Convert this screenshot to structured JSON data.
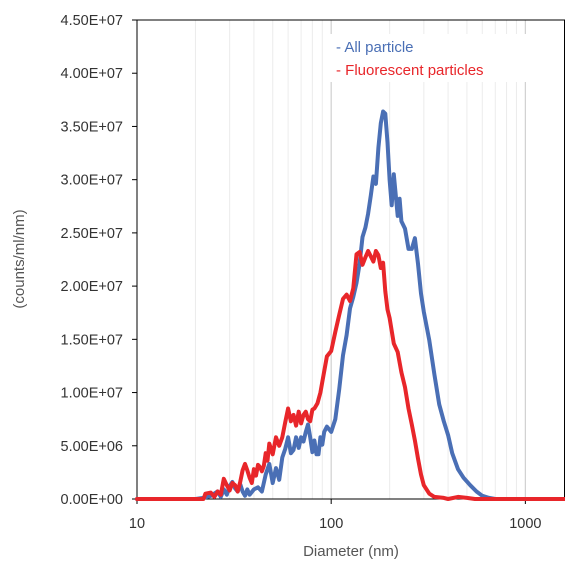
{
  "chart_data": {
    "type": "line",
    "xlabel": "Diameter (nm)",
    "ylabel": "(counts/ml/nm)",
    "x_scale": "log",
    "xlim": [
      10,
      1600
    ],
    "ylim": [
      0,
      45000000
    ],
    "x_ticks": [
      "10",
      "100",
      "1000"
    ],
    "y_ticks": [
      "0.00E+00",
      "5.00E+06",
      "1.00E+07",
      "1.50E+07",
      "2.00E+07",
      "2.50E+07",
      "3.00E+07",
      "3.50E+07",
      "4.00E+07",
      "4.50E+07"
    ],
    "y_tick_values": [
      0,
      5000000,
      10000000,
      15000000,
      20000000,
      25000000,
      30000000,
      35000000,
      40000000,
      45000000
    ],
    "grid": "vertical gridlines only",
    "legend_position": "top-right",
    "series": [
      {
        "name": "- All particle",
        "color": "#4a6fb5",
        "points": [
          [
            10,
            0
          ],
          [
            20,
            0
          ],
          [
            22,
            100000
          ],
          [
            24,
            300000
          ],
          [
            26,
            700000
          ],
          [
            27,
            200000
          ],
          [
            28,
            900000
          ],
          [
            29,
            400000
          ],
          [
            30,
            1200000
          ],
          [
            31,
            1600000
          ],
          [
            32,
            1000000
          ],
          [
            33,
            700000
          ],
          [
            34,
            1400000
          ],
          [
            35,
            700000
          ],
          [
            36,
            300000
          ],
          [
            37,
            900000
          ],
          [
            38,
            400000
          ],
          [
            40,
            900000
          ],
          [
            42,
            1100000
          ],
          [
            44,
            700000
          ],
          [
            46,
            2300000
          ],
          [
            48,
            3300000
          ],
          [
            50,
            1500000
          ],
          [
            52,
            2900000
          ],
          [
            54,
            1800000
          ],
          [
            56,
            3900000
          ],
          [
            58,
            4700000
          ],
          [
            60,
            5800000
          ],
          [
            62,
            4300000
          ],
          [
            64,
            4600000
          ],
          [
            66,
            5800000
          ],
          [
            68,
            4800000
          ],
          [
            70,
            5800000
          ],
          [
            72,
            5400000
          ],
          [
            74,
            6300000
          ],
          [
            76,
            7000000
          ],
          [
            78,
            5800000
          ],
          [
            80,
            4400000
          ],
          [
            82,
            5500000
          ],
          [
            84,
            4200000
          ],
          [
            86,
            4200000
          ],
          [
            88,
            5800000
          ],
          [
            90,
            5100000
          ],
          [
            92,
            6300000
          ],
          [
            95,
            6800000
          ],
          [
            100,
            6300000
          ],
          [
            105,
            7500000
          ],
          [
            110,
            10300000
          ],
          [
            115,
            13500000
          ],
          [
            120,
            15400000
          ],
          [
            125,
            17900000
          ],
          [
            130,
            19000000
          ],
          [
            135,
            20300000
          ],
          [
            140,
            22100000
          ],
          [
            145,
            24600000
          ],
          [
            150,
            25500000
          ],
          [
            155,
            26800000
          ],
          [
            160,
            28500000
          ],
          [
            165,
            30300000
          ],
          [
            170,
            29600000
          ],
          [
            175,
            33000000
          ],
          [
            180,
            35300000
          ],
          [
            185,
            36400000
          ],
          [
            190,
            36200000
          ],
          [
            195,
            33500000
          ],
          [
            200,
            30000000
          ],
          [
            205,
            27600000
          ],
          [
            210,
            30500000
          ],
          [
            215,
            28600000
          ],
          [
            220,
            26600000
          ],
          [
            225,
            28200000
          ],
          [
            230,
            26100000
          ],
          [
            240,
            25400000
          ],
          [
            250,
            23500000
          ],
          [
            260,
            23500000
          ],
          [
            270,
            24500000
          ],
          [
            280,
            22100000
          ],
          [
            290,
            19300000
          ],
          [
            300,
            17600000
          ],
          [
            320,
            14900000
          ],
          [
            340,
            11700000
          ],
          [
            360,
            8900000
          ],
          [
            380,
            7300000
          ],
          [
            400,
            6000000
          ],
          [
            420,
            4300000
          ],
          [
            450,
            2800000
          ],
          [
            480,
            2000000
          ],
          [
            520,
            1300000
          ],
          [
            560,
            700000
          ],
          [
            600,
            300000
          ],
          [
            650,
            100000
          ],
          [
            700,
            0
          ],
          [
            1600,
            0
          ]
        ]
      },
      {
        "name": "- Fluorescent particles",
        "color": "#e8262a",
        "points": [
          [
            10,
            0
          ],
          [
            22,
            0
          ],
          [
            22.5,
            500000
          ],
          [
            24,
            600000
          ],
          [
            25,
            200000
          ],
          [
            26,
            700000
          ],
          [
            27,
            400000
          ],
          [
            28,
            1900000
          ],
          [
            29,
            1300000
          ],
          [
            30,
            800000
          ],
          [
            31,
            1500000
          ],
          [
            32,
            1300000
          ],
          [
            33,
            700000
          ],
          [
            34,
            1600000
          ],
          [
            35,
            2700000
          ],
          [
            36,
            3300000
          ],
          [
            37,
            2700000
          ],
          [
            38,
            2000000
          ],
          [
            39,
            1500000
          ],
          [
            40,
            2800000
          ],
          [
            41,
            2200000
          ],
          [
            42,
            3200000
          ],
          [
            43,
            3000000
          ],
          [
            44,
            2600000
          ],
          [
            45,
            3100000
          ],
          [
            46,
            4300000
          ],
          [
            47,
            3600000
          ],
          [
            48,
            5200000
          ],
          [
            50,
            4200000
          ],
          [
            52,
            5800000
          ],
          [
            54,
            5000000
          ],
          [
            56,
            5800000
          ],
          [
            58,
            7200000
          ],
          [
            60,
            8500000
          ],
          [
            62,
            7300000
          ],
          [
            64,
            7900000
          ],
          [
            66,
            6900000
          ],
          [
            68,
            8200000
          ],
          [
            70,
            7100000
          ],
          [
            72,
            7900000
          ],
          [
            74,
            8200000
          ],
          [
            76,
            7500000
          ],
          [
            78,
            7300000
          ],
          [
            80,
            8400000
          ],
          [
            82,
            8500000
          ],
          [
            85,
            9000000
          ],
          [
            88,
            10000000
          ],
          [
            90,
            11000000
          ],
          [
            95,
            13400000
          ],
          [
            100,
            13900000
          ],
          [
            105,
            15700000
          ],
          [
            110,
            17300000
          ],
          [
            115,
            18800000
          ],
          [
            120,
            19200000
          ],
          [
            125,
            18600000
          ],
          [
            130,
            19800000
          ],
          [
            135,
            23000000
          ],
          [
            140,
            23200000
          ],
          [
            145,
            22000000
          ],
          [
            150,
            22700000
          ],
          [
            155,
            23300000
          ],
          [
            160,
            22800000
          ],
          [
            165,
            22300000
          ],
          [
            170,
            23300000
          ],
          [
            175,
            22900000
          ],
          [
            180,
            21700000
          ],
          [
            185,
            22200000
          ],
          [
            190,
            19500000
          ],
          [
            195,
            17800000
          ],
          [
            200,
            17000000
          ],
          [
            210,
            14600000
          ],
          [
            220,
            13800000
          ],
          [
            230,
            11900000
          ],
          [
            240,
            10500000
          ],
          [
            250,
            8500000
          ],
          [
            260,
            7000000
          ],
          [
            270,
            5500000
          ],
          [
            280,
            3800000
          ],
          [
            290,
            2300000
          ],
          [
            300,
            1300000
          ],
          [
            320,
            500000
          ],
          [
            340,
            200000
          ],
          [
            380,
            100000
          ],
          [
            400,
            0
          ],
          [
            450,
            200000
          ],
          [
            500,
            100000
          ],
          [
            550,
            0
          ],
          [
            1600,
            0
          ]
        ]
      }
    ]
  }
}
